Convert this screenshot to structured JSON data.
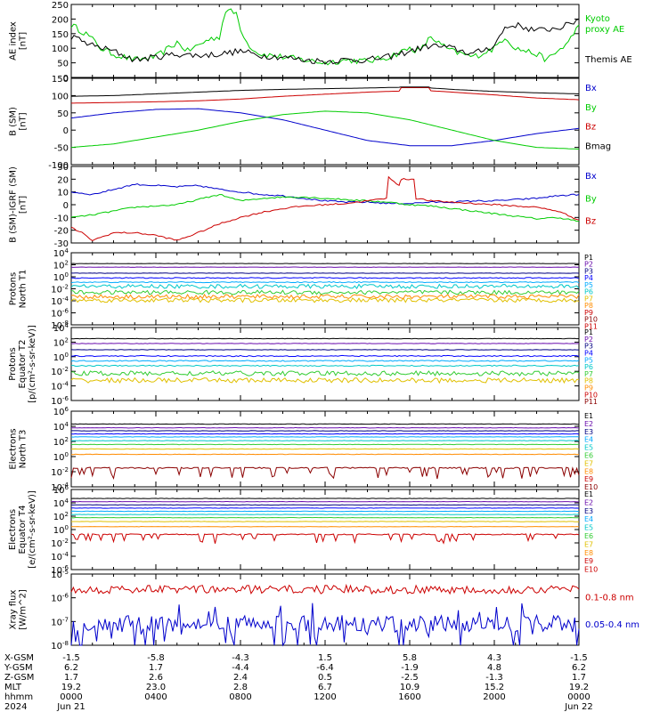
{
  "colors": {
    "black": "#000000",
    "green": "#00cc00",
    "red": "#cc0000",
    "blue": "#0000cc",
    "purple": "#6a0dad",
    "navy": "#000080",
    "royal": "#0000ff",
    "sky": "#00aaff",
    "cyan": "#00c8c8",
    "teal": "#009a9a",
    "lime": "#33cc33",
    "gold": "#e0c000",
    "orange": "#ff8c00",
    "darkred": "#8b0000",
    "brick": "#b22222",
    "crimson": "#cc0000"
  },
  "chart_data": [
    {
      "type": "line",
      "ylabel": [
        "AE index",
        "[nT]"
      ],
      "yticks": [
        "250",
        "200",
        "150",
        "100",
        "50",
        "0"
      ],
      "ylim": [
        0,
        250
      ],
      "legend": [
        "Kyoto",
        "proxy AE",
        "Themis AE"
      ],
      "series": [
        {
          "name": "Kyoto proxy AE",
          "color": "green",
          "x": [
            0,
            0.7,
            1,
            1.4,
            2,
            3,
            4,
            4.6,
            5,
            5.5,
            6,
            6.5,
            7,
            7.3,
            7.8,
            8,
            8.3,
            8.7,
            9,
            10,
            11,
            12,
            13,
            14,
            15,
            16,
            16.5,
            17,
            17.5,
            18,
            19,
            20,
            20.5,
            21,
            22,
            22.5,
            23,
            23.5,
            24
          ],
          "y": [
            180,
            150,
            130,
            100,
            80,
            60,
            70,
            100,
            120,
            90,
            110,
            130,
            140,
            230,
            220,
            170,
            120,
            90,
            80,
            70,
            60,
            50,
            60,
            55,
            70,
            100,
            90,
            140,
            110,
            90,
            70,
            100,
            140,
            100,
            80,
            60,
            90,
            120,
            180
          ]
        },
        {
          "name": "Themis AE",
          "color": "black",
          "x": [
            0,
            1,
            2,
            3,
            4,
            5,
            6,
            7,
            8,
            9,
            10,
            11,
            12,
            13,
            14,
            15,
            16,
            17,
            18,
            19,
            20,
            20.5,
            21,
            22,
            23,
            23.5,
            24
          ],
          "y": [
            140,
            110,
            90,
            60,
            70,
            80,
            75,
            80,
            90,
            75,
            70,
            60,
            55,
            60,
            60,
            70,
            90,
            110,
            100,
            80,
            110,
            170,
            180,
            160,
            170,
            180,
            200
          ]
        }
      ]
    },
    {
      "type": "line",
      "ylabel": [
        "B (SM)",
        "[nT]"
      ],
      "yticks": [
        "150",
        "100",
        "50",
        "0",
        "-50",
        "-100"
      ],
      "ylim": [
        -100,
        150
      ],
      "legend": [
        "Bx",
        "By",
        "Bz",
        "Bmag"
      ],
      "series": [
        {
          "name": "Bx",
          "color": "blue",
          "x": [
            0,
            2,
            4,
            6,
            8,
            10,
            12,
            14,
            16,
            18,
            20,
            22,
            24
          ],
          "y": [
            35,
            50,
            60,
            62,
            50,
            30,
            0,
            -30,
            -45,
            -45,
            -30,
            -10,
            5
          ]
        },
        {
          "name": "By",
          "color": "green",
          "x": [
            0,
            2,
            4,
            6,
            8,
            10,
            12,
            14,
            16,
            18,
            20,
            22,
            24
          ],
          "y": [
            -50,
            -40,
            -20,
            0,
            25,
            45,
            55,
            50,
            30,
            0,
            -30,
            -50,
            -55
          ]
        },
        {
          "name": "Bz",
          "color": "red",
          "x": [
            0,
            2,
            4,
            6,
            8,
            10,
            12,
            14,
            15.5,
            15.6,
            16.9,
            17,
            18,
            20,
            22,
            24
          ],
          "y": [
            78,
            80,
            82,
            85,
            90,
            98,
            104,
            110,
            113,
            123,
            123,
            114,
            110,
            102,
            93,
            88
          ]
        },
        {
          "name": "Bmag",
          "color": "black",
          "x": [
            0,
            2,
            4,
            6,
            8,
            10,
            12,
            14,
            15.5,
            15.6,
            16.9,
            17,
            18,
            20,
            22,
            24
          ],
          "y": [
            98,
            100,
            105,
            110,
            115,
            118,
            120,
            122,
            124,
            125,
            125,
            122,
            118,
            112,
            108,
            105
          ]
        }
      ]
    },
    {
      "type": "line",
      "ylabel": [
        "B (SM)-IGRF (SM)",
        "[nT]"
      ],
      "yticks": [
        "30",
        "20",
        "10",
        "0",
        "-10",
        "-20",
        "-30"
      ],
      "ylim": [
        -30,
        30
      ],
      "legend": [
        "Bx",
        "By",
        "Bz"
      ],
      "series": [
        {
          "name": "Bx",
          "color": "blue",
          "x": [
            0,
            1,
            2,
            3,
            4,
            5,
            6,
            7,
            8,
            9,
            10,
            11,
            12,
            13,
            14,
            15,
            16,
            17,
            18,
            19,
            20,
            21,
            22,
            23,
            24
          ],
          "y": [
            10,
            8,
            12,
            16,
            15,
            14,
            15,
            12,
            10,
            8,
            7,
            5,
            3,
            2,
            2,
            1,
            1,
            2,
            2,
            3,
            3,
            4,
            5,
            7,
            8
          ]
        },
        {
          "name": "By",
          "color": "green",
          "x": [
            0,
            1,
            2,
            3,
            4,
            5,
            6,
            7,
            8,
            9,
            10,
            11,
            12,
            13,
            14,
            15,
            16,
            17,
            18,
            19,
            20,
            21,
            22,
            23,
            24
          ],
          "y": [
            -10,
            -8,
            -5,
            -2,
            -1,
            0,
            4,
            8,
            3,
            5,
            6,
            6,
            5,
            4,
            3,
            2,
            0,
            -1,
            -3,
            -5,
            -7,
            -9,
            -11,
            -10,
            -13
          ]
        },
        {
          "name": "Bz",
          "color": "red",
          "x": [
            0,
            0.5,
            1,
            2,
            3,
            4,
            5,
            5.5,
            6,
            7,
            8,
            9,
            10,
            11,
            12,
            13,
            14,
            14.9,
            15,
            15.5,
            15.6,
            16.2,
            16.3,
            17,
            18,
            19,
            20,
            21,
            22,
            23,
            24
          ],
          "y": [
            -18,
            -22,
            -28,
            -22,
            -22,
            -24,
            -28,
            -25,
            -22,
            -15,
            -10,
            -6,
            -3,
            -1,
            0,
            1,
            3,
            5,
            22,
            15,
            20,
            20,
            5,
            3,
            2,
            1,
            0,
            -1,
            -2,
            -5,
            -12
          ]
        }
      ]
    },
    {
      "type": "line",
      "scale": "log",
      "ylabel": [
        "Protons",
        "North T1"
      ],
      "yticks": [
        "10^4",
        "10^2",
        "10^0",
        "10^-2",
        "10^-4",
        "10^-6",
        "10^-8"
      ],
      "ylim": [
        -8,
        4
      ],
      "legend": [
        "P1",
        "P2",
        "P3",
        "P4",
        "P5",
        "P6",
        "P7",
        "P8",
        "P9",
        "P10",
        "P11"
      ],
      "legend_colors": [
        "black",
        "purple",
        "navy",
        "royal",
        "sky",
        "cyan",
        "gold",
        "orange",
        "red",
        "darkred",
        "crimson"
      ],
      "levels": [
        2.2,
        1.6,
        0.6,
        -0.2,
        -0.9,
        -1.6,
        -2.6,
        -3.9,
        -3.3
      ],
      "level_colors": [
        "black",
        "purple",
        "navy",
        "royal",
        "sky",
        "cyan",
        "lime",
        "gold",
        "orange"
      ]
    },
    {
      "type": "line",
      "scale": "log",
      "ylabel": [
        "Protons",
        "Equator T2",
        "[p/(cm²-s-sr-keV)]"
      ],
      "yticks": [
        "10^4",
        "10^2",
        "10^0",
        "10^-2",
        "10^-4",
        "10^-6"
      ],
      "ylim": [
        -6.5,
        4
      ],
      "legend": [
        "P1",
        "P2",
        "P3",
        "P4",
        "P5",
        "P6",
        "P7",
        "P8",
        "P9",
        "P10",
        "P11"
      ],
      "legend_colors": [
        "black",
        "purple",
        "navy",
        "royal",
        "sky",
        "cyan",
        "lime",
        "gold",
        "orange",
        "red",
        "darkred"
      ],
      "levels": [
        2.4,
        1.7,
        0.8,
        -0.1,
        -0.8,
        -1.5,
        -2.6,
        -3.6
      ],
      "level_colors": [
        "black",
        "purple",
        "navy",
        "royal",
        "sky",
        "cyan",
        "lime",
        "gold"
      ]
    },
    {
      "type": "line",
      "scale": "log",
      "ylabel": [
        "Electrons",
        "North T3"
      ],
      "yticks": [
        "10^6",
        "10^4",
        "10^2",
        "10^0",
        "10^-2",
        "10^-4"
      ],
      "ylim": [
        -4,
        6
      ],
      "legend": [
        "E1",
        "E2",
        "E3",
        "E4",
        "E5",
        "E6",
        "E7",
        "E8",
        "E9",
        "E10"
      ],
      "legend_colors": [
        "black",
        "purple",
        "navy",
        "sky",
        "cyan",
        "lime",
        "gold",
        "orange",
        "red",
        "darkred"
      ],
      "levels": [
        4.3,
        3.8,
        3.4,
        3.0,
        2.6,
        2.1,
        1.6,
        1.0,
        0.3,
        -1.5
      ],
      "level_colors": [
        "black",
        "purple",
        "navy",
        "royal",
        "sky",
        "cyan",
        "lime",
        "gold",
        "orange",
        "darkred"
      ]
    },
    {
      "type": "line",
      "scale": "log",
      "ylabel": [
        "Electrons",
        "Equator T4",
        "[e/(cm²-s-sr-keV)]"
      ],
      "yticks": [
        "10^6",
        "10^4",
        "10^2",
        "10^0",
        "10^-2",
        "10^-4",
        "10^-6"
      ],
      "ylim": [
        -6.5,
        6
      ],
      "legend": [
        "E1",
        "E2",
        "E3",
        "E4",
        "E5",
        "E6",
        "E7",
        "E8",
        "E9",
        "E10"
      ],
      "legend_colors": [
        "black",
        "purple",
        "navy",
        "sky",
        "cyan",
        "lime",
        "gold",
        "orange",
        "red",
        "crimson"
      ],
      "levels": [
        4.6,
        4.1,
        3.6,
        3.1,
        2.6,
        2.1,
        1.6,
        1.0,
        0.2,
        -1.0
      ],
      "level_colors": [
        "black",
        "purple",
        "navy",
        "royal",
        "sky",
        "cyan",
        "lime",
        "gold",
        "orange",
        "red"
      ]
    },
    {
      "type": "line",
      "scale": "log",
      "ylabel": [
        "Xray flux",
        "[W/m^2]"
      ],
      "yticks": [
        "10^-5",
        "10^-6",
        "10^-7",
        "10^-8"
      ],
      "ylim": [
        -8,
        -5
      ],
      "legend": [
        "0.1-0.8 nm",
        "0.05-0.4 nm"
      ],
      "legend_colors": [
        "red",
        "blue"
      ],
      "levels": [
        -5.65,
        -7.1
      ],
      "level_colors": [
        "red",
        "blue"
      ]
    }
  ],
  "xaxis": {
    "rows": [
      {
        "label": "X-GSM",
        "values": [
          "-1.5",
          "-5.8",
          "-4.3",
          "1.5",
          "5.8",
          "4.3",
          "-1.5"
        ]
      },
      {
        "label": "Y-GSM",
        "values": [
          "6.2",
          "1.7",
          "-4.4",
          "-6.4",
          "-1.9",
          "4.8",
          "6.2"
        ]
      },
      {
        "label": "Z-GSM",
        "values": [
          "1.7",
          "2.6",
          "2.4",
          "0.5",
          "-2.5",
          "-1.3",
          "1.7"
        ]
      },
      {
        "label": "MLT",
        "values": [
          "19.2",
          "23.0",
          "2.8",
          "6.7",
          "10.9",
          "15.2",
          "19.2"
        ]
      },
      {
        "label": "hhmm",
        "values": [
          "0000",
          "0400",
          "0800",
          "1200",
          "1600",
          "2000",
          "0000"
        ]
      },
      {
        "label": "2024",
        "values": [
          "Jun 21",
          "",
          "",
          "",
          "",
          "",
          "Jun 22"
        ]
      }
    ]
  }
}
